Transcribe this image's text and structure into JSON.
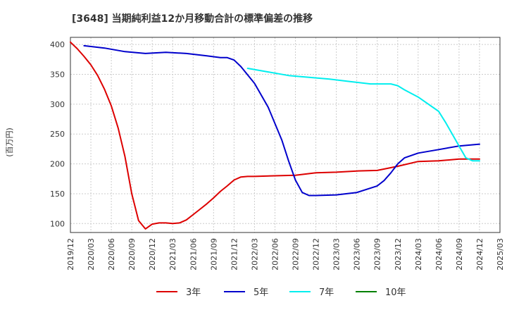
{
  "chart_data": {
    "type": "line",
    "title": "[3648]  当期純利益12か月移動合計の標準偏差の推移",
    "ylabel": "(百万円)",
    "xlabel": "",
    "xlim": [
      "2019/12",
      "2025/03"
    ],
    "ylim": [
      85,
      412
    ],
    "yticks": [
      100,
      150,
      200,
      250,
      300,
      350,
      400
    ],
    "xticks": [
      "2019/12",
      "2020/03",
      "2020/06",
      "2020/09",
      "2020/12",
      "2021/03",
      "2021/06",
      "2021/09",
      "2021/12",
      "2022/03",
      "2022/06",
      "2022/09",
      "2022/12",
      "2023/03",
      "2023/06",
      "2023/09",
      "2023/12",
      "2024/03",
      "2024/06",
      "2024/09",
      "2024/12",
      "2025/03"
    ],
    "grid": true,
    "legend_position": "bottom",
    "series": [
      {
        "name": "3年",
        "color": "#dd0000",
        "x": [
          "2019/12",
          "2020/01",
          "2020/02",
          "2020/03",
          "2020/04",
          "2020/05",
          "2020/06",
          "2020/07",
          "2020/08",
          "2020/09",
          "2020/10",
          "2020/11",
          "2020/12",
          "2021/01",
          "2021/02",
          "2021/03",
          "2021/04",
          "2021/05",
          "2021/06",
          "2021/07",
          "2021/08",
          "2021/09",
          "2021/10",
          "2021/11",
          "2021/12",
          "2022/01",
          "2022/02",
          "2022/03",
          "2022/06",
          "2022/09",
          "2022/12",
          "2023/03",
          "2023/06",
          "2023/09",
          "2023/12",
          "2024/03",
          "2024/06",
          "2024/09",
          "2024/12"
        ],
        "values": [
          404,
          393,
          380,
          366,
          348,
          325,
          297,
          260,
          212,
          150,
          105,
          91,
          99,
          101,
          101,
          100,
          101,
          106,
          115,
          124,
          133,
          143,
          154,
          163,
          173,
          178,
          179,
          179,
          180,
          181,
          185,
          186,
          188,
          189,
          196,
          204,
          205,
          208,
          208
        ]
      },
      {
        "name": "5年",
        "color": "#0000cc",
        "x": [
          "2020/02",
          "2020/05",
          "2020/08",
          "2020/11",
          "2021/02",
          "2021/05",
          "2021/08",
          "2021/10",
          "2021/11",
          "2021/12",
          "2022/01",
          "2022/03",
          "2022/05",
          "2022/07",
          "2022/08",
          "2022/09",
          "2022/10",
          "2022/11",
          "2022/12",
          "2023/03",
          "2023/06",
          "2023/09",
          "2023/10",
          "2023/11",
          "2023/12",
          "2024/01",
          "2024/03",
          "2024/06",
          "2024/09",
          "2024/12"
        ],
        "values": [
          398,
          394,
          388,
          385,
          387,
          385,
          381,
          378,
          378,
          374,
          363,
          335,
          295,
          240,
          205,
          173,
          152,
          147,
          147,
          148,
          152,
          163,
          172,
          185,
          200,
          210,
          218,
          224,
          230,
          233
        ]
      },
      {
        "name": "7年",
        "color": "#00eeee",
        "x": [
          "2022/02",
          "2022/05",
          "2022/08",
          "2022/11",
          "2023/02",
          "2023/05",
          "2023/08",
          "2023/10",
          "2023/11",
          "2023/12",
          "2024/01",
          "2024/03",
          "2024/06",
          "2024/07",
          "2024/08",
          "2024/09",
          "2024/10",
          "2024/11",
          "2024/12"
        ],
        "values": [
          360,
          354,
          348,
          345,
          342,
          338,
          334,
          334,
          334,
          331,
          324,
          312,
          288,
          270,
          250,
          230,
          210,
          205,
          205
        ]
      },
      {
        "name": "10年",
        "color": "#008000",
        "x": [],
        "values": []
      }
    ]
  }
}
